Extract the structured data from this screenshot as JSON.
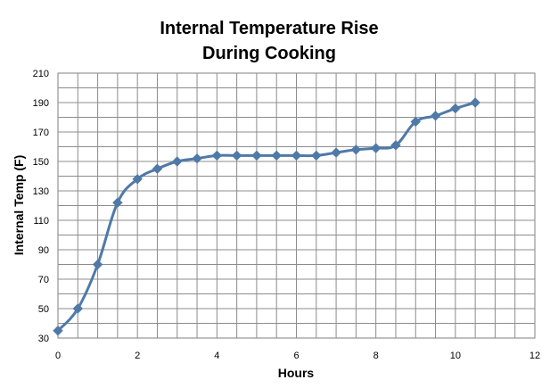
{
  "chart_data": {
    "type": "line",
    "title_line1": "Internal Temperature Rise",
    "title_line2": "During Cooking",
    "xlabel": "Hours",
    "ylabel": "Internal Temp (F)",
    "xlim": [
      0,
      12
    ],
    "ylim": [
      30,
      210
    ],
    "x_ticks": [
      0,
      2,
      4,
      6,
      8,
      10,
      12
    ],
    "y_ticks": [
      30,
      50,
      70,
      90,
      110,
      130,
      150,
      170,
      190,
      210
    ],
    "x_minor_step": 0.5,
    "y_minor_step": 10,
    "grid": true,
    "legend": "none",
    "series": [
      {
        "color": "#4f7aa8",
        "marker": "diamond",
        "smooth": true,
        "x": [
          0,
          0.5,
          1,
          1.5,
          2,
          2.5,
          3,
          3.5,
          4,
          4.5,
          5,
          5.5,
          6,
          6.5,
          7,
          7.5,
          8,
          8.5,
          9,
          9.5,
          10,
          10.5
        ],
        "y": [
          35,
          50,
          80,
          122,
          138,
          145,
          150,
          152,
          154,
          154,
          154,
          154,
          154,
          154,
          156,
          158,
          159,
          161,
          177,
          181,
          186,
          190
        ]
      }
    ]
  }
}
